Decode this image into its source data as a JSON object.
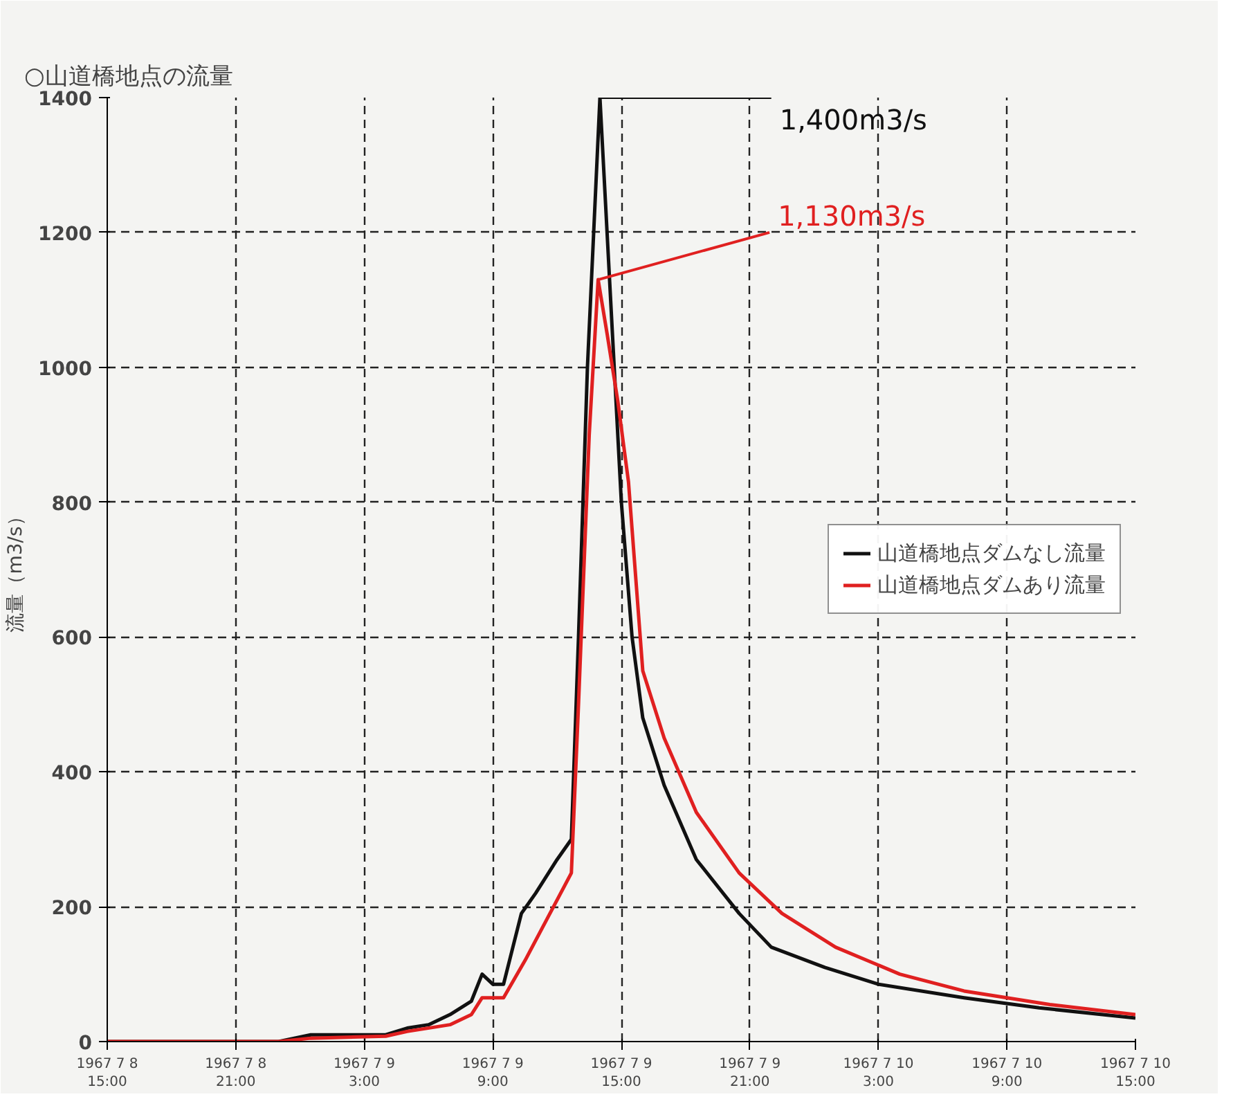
{
  "chart_data": {
    "type": "line",
    "title": "○山道橋地点の流量",
    "ylabel": "流量（m3/s）",
    "x": [
      "1967-07-08T15:00",
      "1967-07-08T23:00",
      "1967-07-09T00:30",
      "1967-07-09T04:00",
      "1967-07-09T05:00",
      "1967-07-09T06:00",
      "1967-07-09T07:00",
      "1967-07-09T08:00",
      "1967-07-09T08:30",
      "1967-07-09T09:00",
      "1967-07-09T09:30",
      "1967-07-09T10:20",
      "1967-07-09T11:00",
      "1967-07-09T12:00",
      "1967-07-09T12:40",
      "1967-07-09T13:00",
      "1967-07-09T13:25",
      "1967-07-09T14:00",
      "1967-07-09T14:30",
      "1967-07-09T15:00",
      "1967-07-09T15:30",
      "1967-07-09T16:00",
      "1967-07-09T17:00",
      "1967-07-09T18:30",
      "1967-07-09T20:30",
      "1967-07-09T22:00",
      "1967-07-10T00:30",
      "1967-07-10T03:00",
      "1967-07-10T07:00",
      "1967-07-10T10:30",
      "1967-07-10T15:00"
    ],
    "series": [
      {
        "name": "山道橋地点ダムなし流量",
        "color": "#111111",
        "values": [
          0,
          0,
          10,
          10,
          20,
          25,
          40,
          60,
          100,
          85,
          85,
          190,
          220,
          270,
          300,
          600,
          1000,
          1400,
          1100,
          800,
          600,
          480,
          380,
          270,
          190,
          140,
          110,
          85,
          65,
          50,
          35
        ]
      },
      {
        "name": "山道橋地点ダムあり流量",
        "color": "#e02020",
        "x": [
          "1967-07-08T15:00",
          "1967-07-08T23:00",
          "1967-07-09T00:30",
          "1967-07-09T04:00",
          "1967-07-09T05:00",
          "1967-07-09T07:00",
          "1967-07-09T08:00",
          "1967-07-09T08:30",
          "1967-07-09T09:30",
          "1967-07-09T10:30",
          "1967-07-09T11:30",
          "1967-07-09T12:40",
          "1967-07-09T13:00",
          "1967-07-09T13:30",
          "1967-07-09T13:55",
          "1967-07-09T14:20",
          "1967-07-09T14:50",
          "1967-07-09T15:20",
          "1967-07-09T16:00",
          "1967-07-09T17:00",
          "1967-07-09T18:30",
          "1967-07-09T20:30",
          "1967-07-09T22:30",
          "1967-07-10T01:00",
          "1967-07-10T04:00",
          "1967-07-10T07:00",
          "1967-07-10T11:00",
          "1967-07-10T15:00"
        ],
        "values": [
          0,
          0,
          5,
          8,
          15,
          25,
          40,
          65,
          65,
          120,
          180,
          250,
          500,
          900,
          1130,
          1050,
          950,
          830,
          550,
          450,
          340,
          250,
          190,
          140,
          100,
          75,
          55,
          40
        ]
      }
    ],
    "xlim": [
      "1967-07-08T15:00",
      "1967-07-10T15:00"
    ],
    "xticks": [
      {
        "value": "1967-07-08T15:00",
        "label": "1967 7 8\n15:00"
      },
      {
        "value": "1967-07-08T21:00",
        "label": "1967 7 8\n21:00"
      },
      {
        "value": "1967-07-09T03:00",
        "label": "1967 7 9\n3:00"
      },
      {
        "value": "1967-07-09T09:00",
        "label": "1967 7 9\n9:00"
      },
      {
        "value": "1967-07-09T15:00",
        "label": "1967 7 9\n15:00"
      },
      {
        "value": "1967-07-09T21:00",
        "label": "1967 7 9\n21:00"
      },
      {
        "value": "1967-07-10T03:00",
        "label": "1967 7 10\n3:00"
      },
      {
        "value": "1967-07-10T09:00",
        "label": "1967 7 10\n9:00"
      },
      {
        "value": "1967-07-10T15:00",
        "label": "1967 7 10\n15:00"
      }
    ],
    "ylim": [
      0,
      1400
    ],
    "yticks": [
      0,
      200,
      400,
      600,
      800,
      1000,
      1200,
      1400
    ],
    "grid": true,
    "legend": "right",
    "line_style": "solid",
    "annotations": [
      {
        "text": "1,400m3/s",
        "x": "1967-07-09T14:00",
        "y": 1400
      },
      {
        "text": "1,130m3/s",
        "x": "1967-07-09T13:55",
        "y": 1130
      }
    ]
  }
}
